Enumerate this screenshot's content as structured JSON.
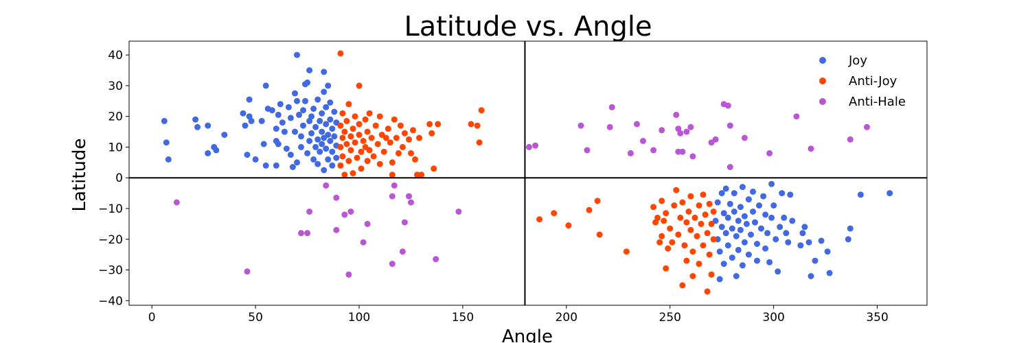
{
  "chart_data": {
    "type": "scatter",
    "title": "Latitude vs. Angle",
    "xlabel": "Angle",
    "ylabel": "Latitude",
    "xlim": [
      -11,
      374
    ],
    "ylim": [
      -41.5,
      44.5
    ],
    "xticks": [
      0,
      50,
      100,
      150,
      200,
      250,
      300,
      350
    ],
    "yticks": [
      -40,
      -30,
      -20,
      -10,
      0,
      10,
      20,
      30,
      40
    ],
    "ytick_labels": [
      "−40",
      "−30",
      "−20",
      "−10",
      "0",
      "10",
      "20",
      "30",
      "40"
    ],
    "reference_lines": {
      "vertical_x": 180,
      "horizontal_y": 0
    },
    "grid": false,
    "legend_position": "top-right",
    "series": [
      {
        "name": "Joy",
        "color": "#4169E1",
        "cluster_center": [
          82,
          14
        ],
        "cluster_center_2": [
          284,
          -16
        ],
        "points": [
          [
            6,
            18.5
          ],
          [
            7,
            11.5
          ],
          [
            8,
            6
          ],
          [
            21,
            19
          ],
          [
            22,
            16.5
          ],
          [
            27,
            17
          ],
          [
            27,
            8
          ],
          [
            30,
            10
          ],
          [
            31,
            9
          ],
          [
            35,
            14
          ],
          [
            44,
            21
          ],
          [
            45,
            17
          ],
          [
            46,
            7.5
          ],
          [
            47,
            25.5
          ],
          [
            47,
            20
          ],
          [
            48,
            18.5
          ],
          [
            50,
            6
          ],
          [
            53,
            18.5
          ],
          [
            54,
            11
          ],
          [
            55,
            4
          ],
          [
            55,
            30
          ],
          [
            56,
            22.5
          ],
          [
            58,
            22
          ],
          [
            60,
            12
          ],
          [
            60,
            16
          ],
          [
            60,
            4
          ],
          [
            61,
            20.5
          ],
          [
            61,
            11
          ],
          [
            62,
            24
          ],
          [
            63,
            18
          ],
          [
            64,
            15
          ],
          [
            65,
            9.5
          ],
          [
            66,
            23
          ],
          [
            67,
            19.5
          ],
          [
            67,
            7.5
          ],
          [
            68,
            3.5
          ],
          [
            69,
            27.5
          ],
          [
            69,
            15
          ],
          [
            70,
            40
          ],
          [
            70,
            25
          ],
          [
            70,
            5
          ],
          [
            71,
            20.5
          ],
          [
            72,
            13.5
          ],
          [
            72,
            10
          ],
          [
            73,
            17
          ],
          [
            73,
            22
          ],
          [
            74,
            25
          ],
          [
            74,
            30.5
          ],
          [
            75,
            31
          ],
          [
            75,
            8
          ],
          [
            76,
            12
          ],
          [
            76,
            18.5
          ],
          [
            76,
            35
          ],
          [
            77,
            14.5
          ],
          [
            77,
            20
          ],
          [
            78,
            6
          ],
          [
            78,
            22.5
          ],
          [
            79,
            10
          ],
          [
            79,
            16.5
          ],
          [
            80,
            12.5
          ],
          [
            80,
            25.5
          ],
          [
            80,
            4.5
          ],
          [
            81,
            18.5
          ],
          [
            81,
            8.5
          ],
          [
            82,
            15
          ],
          [
            82,
            21
          ],
          [
            82,
            11
          ],
          [
            83,
            13
          ],
          [
            83,
            28
          ],
          [
            83,
            34.5
          ],
          [
            83,
            2.5
          ],
          [
            84,
            17.5
          ],
          [
            84,
            9.5
          ],
          [
            84,
            23
          ],
          [
            85,
            14
          ],
          [
            85,
            6
          ],
          [
            85,
            30
          ],
          [
            86,
            19
          ],
          [
            86,
            12
          ],
          [
            86,
            24.5
          ],
          [
            87,
            16
          ],
          [
            87,
            8.5
          ],
          [
            87,
            4
          ],
          [
            88,
            13.5
          ],
          [
            88,
            21.5
          ],
          [
            89,
            10.5
          ],
          [
            89,
            18
          ],
          [
            89,
            6.5
          ],
          [
            272,
            -14
          ],
          [
            273,
            -20
          ],
          [
            273,
            -8
          ],
          [
            274,
            -33
          ],
          [
            274,
            -24
          ],
          [
            275,
            -16
          ],
          [
            275,
            -5
          ],
          [
            276,
            -11.5
          ],
          [
            276,
            -28
          ],
          [
            277,
            -18
          ],
          [
            277,
            -3.5
          ],
          [
            278,
            -13
          ],
          [
            278,
            -22
          ],
          [
            279,
            -8.5
          ],
          [
            280,
            -16.5
          ],
          [
            280,
            -26
          ],
          [
            281,
            -11
          ],
          [
            281,
            -5
          ],
          [
            282,
            -19
          ],
          [
            282,
            -32
          ],
          [
            283,
            -14
          ],
          [
            283,
            -23.5
          ],
          [
            284,
            -9.5
          ],
          [
            284,
            -17
          ],
          [
            285,
            -28.5
          ],
          [
            285,
            -3
          ],
          [
            286,
            -12.5
          ],
          [
            286,
            -21
          ],
          [
            287,
            -15
          ],
          [
            288,
            -7
          ],
          [
            288,
            -25
          ],
          [
            289,
            -18.5
          ],
          [
            290,
            -11
          ],
          [
            290,
            -4.5
          ],
          [
            291,
            -14.5
          ],
          [
            292,
            -21.5
          ],
          [
            292,
            -27
          ],
          [
            293,
            -9
          ],
          [
            294,
            -16.5
          ],
          [
            295,
            -6
          ],
          [
            296,
            -12
          ],
          [
            296,
            -23
          ],
          [
            297,
            -18
          ],
          [
            298,
            -27.5
          ],
          [
            299,
            -2
          ],
          [
            299,
            -13
          ],
          [
            300,
            -9
          ],
          [
            301,
            -20
          ],
          [
            302,
            -30.5
          ],
          [
            303,
            -16
          ],
          [
            304,
            -5
          ],
          [
            305,
            -13
          ],
          [
            306,
            -18
          ],
          [
            307,
            -21
          ],
          [
            308,
            -5.5
          ],
          [
            309,
            -14
          ],
          [
            313,
            -22
          ],
          [
            314,
            -18
          ],
          [
            315,
            -16
          ],
          [
            317,
            -21
          ],
          [
            318,
            -32
          ],
          [
            320,
            -27
          ],
          [
            323,
            -20.5
          ],
          [
            326,
            -24
          ],
          [
            327,
            -31
          ],
          [
            336,
            -20
          ],
          [
            337,
            -16.5
          ],
          [
            342,
            -5.5
          ],
          [
            356,
            -5
          ]
        ]
      },
      {
        "name": "Anti-Joy",
        "color": "#FF4500",
        "points": [
          [
            91,
            40.5
          ],
          [
            91,
            17
          ],
          [
            91,
            10
          ],
          [
            91,
            4
          ],
          [
            92,
            13
          ],
          [
            92,
            21
          ],
          [
            92,
            7
          ],
          [
            93,
            1
          ],
          [
            93,
            15
          ],
          [
            94,
            11
          ],
          [
            94,
            18.5
          ],
          [
            95,
            5.5
          ],
          [
            95,
            24
          ],
          [
            96,
            13.5
          ],
          [
            96,
            9
          ],
          [
            97,
            16
          ],
          [
            97,
            1.5
          ],
          [
            98,
            20
          ],
          [
            98,
            11.5
          ],
          [
            99,
            6.5
          ],
          [
            100,
            14
          ],
          [
            100,
            30
          ],
          [
            100,
            17.5
          ],
          [
            101,
            8.5
          ],
          [
            101,
            3
          ],
          [
            102,
            12
          ],
          [
            103,
            19
          ],
          [
            103,
            10
          ],
          [
            104,
            15
          ],
          [
            104,
            5.5
          ],
          [
            105,
            9
          ],
          [
            105,
            21
          ],
          [
            106,
            13
          ],
          [
            107,
            7
          ],
          [
            108,
            17
          ],
          [
            109,
            11
          ],
          [
            110,
            4.5
          ],
          [
            110,
            20
          ],
          [
            111,
            14
          ],
          [
            112,
            8.5
          ],
          [
            113,
            13
          ],
          [
            114,
            16
          ],
          [
            115,
            11.5
          ],
          [
            116,
            5
          ],
          [
            116,
            1
          ],
          [
            117,
            19
          ],
          [
            118,
            13
          ],
          [
            119,
            8
          ],
          [
            120,
            17
          ],
          [
            121,
            10
          ],
          [
            122,
            14.5
          ],
          [
            124,
            12.5
          ],
          [
            125,
            8
          ],
          [
            126,
            15.5
          ],
          [
            127,
            6
          ],
          [
            128,
            1
          ],
          [
            129,
            13
          ],
          [
            130,
            1
          ],
          [
            134,
            17.5
          ],
          [
            135,
            14.5
          ],
          [
            136,
            3
          ],
          [
            138,
            17.5
          ],
          [
            154,
            17.5
          ],
          [
            157,
            17
          ],
          [
            158,
            11.5
          ],
          [
            159,
            22
          ],
          [
            187,
            -13.5
          ],
          [
            194,
            -11.5
          ],
          [
            201,
            -15.5
          ],
          [
            211,
            -10.5
          ],
          [
            215,
            -7.5
          ],
          [
            216,
            -18.5
          ],
          [
            229,
            -24
          ],
          [
            242,
            -9.5
          ],
          [
            243,
            -14.5
          ],
          [
            244,
            -13
          ],
          [
            245,
            -21
          ],
          [
            246,
            -19
          ],
          [
            246,
            -7.5
          ],
          [
            247,
            -14
          ],
          [
            248,
            -11.5
          ],
          [
            248,
            -29.5
          ],
          [
            249,
            -23
          ],
          [
            250,
            -16.5
          ],
          [
            251,
            -21
          ],
          [
            252,
            -9
          ],
          [
            253,
            -4
          ],
          [
            254,
            -18.5
          ],
          [
            255,
            -13
          ],
          [
            256,
            -8
          ],
          [
            256,
            -35
          ],
          [
            257,
            -22
          ],
          [
            258,
            -14.5
          ],
          [
            258,
            -27
          ],
          [
            259,
            -11
          ],
          [
            260,
            -17
          ],
          [
            260,
            -6
          ],
          [
            261,
            -24
          ],
          [
            261,
            -32
          ],
          [
            262,
            -13
          ],
          [
            263,
            -19
          ],
          [
            264,
            -9
          ],
          [
            264,
            -28
          ],
          [
            265,
            -15
          ],
          [
            266,
            -22
          ],
          [
            266,
            -5.5
          ],
          [
            267,
            -12
          ],
          [
            268,
            -37
          ],
          [
            268,
            -18
          ],
          [
            269,
            -25
          ],
          [
            269,
            -8.5
          ],
          [
            270,
            -15
          ],
          [
            270,
            -31.5
          ],
          [
            271,
            -11
          ],
          [
            271,
            -20
          ]
        ]
      },
      {
        "name": "Anti-Hale",
        "color": "#BA55D3",
        "points": [
          [
            12,
            -8
          ],
          [
            46,
            -30.5
          ],
          [
            72,
            -18
          ],
          [
            75,
            -18
          ],
          [
            76,
            -11
          ],
          [
            84,
            -2.5
          ],
          [
            89,
            -6.5
          ],
          [
            89,
            -17
          ],
          [
            93,
            -12
          ],
          [
            95,
            -31.5
          ],
          [
            96,
            -11
          ],
          [
            102,
            -21
          ],
          [
            104,
            -15
          ],
          [
            116,
            -6
          ],
          [
            116,
            -28
          ],
          [
            117,
            -2.5
          ],
          [
            121,
            -24
          ],
          [
            122,
            -14.5
          ],
          [
            124,
            -6
          ],
          [
            125,
            -8
          ],
          [
            137,
            -26.5
          ],
          [
            148,
            -11
          ],
          [
            182,
            10
          ],
          [
            185,
            10.5
          ],
          [
            207,
            17
          ],
          [
            210,
            9
          ],
          [
            221,
            16.5
          ],
          [
            222,
            23
          ],
          [
            231,
            8
          ],
          [
            234,
            17.5
          ],
          [
            237,
            12
          ],
          [
            242,
            9
          ],
          [
            246,
            15.5
          ],
          [
            253,
            20.5
          ],
          [
            254,
            16
          ],
          [
            254,
            8.5
          ],
          [
            255,
            14.5
          ],
          [
            256,
            8.5
          ],
          [
            258,
            15
          ],
          [
            260,
            16.5
          ],
          [
            261,
            7
          ],
          [
            270,
            11.5
          ],
          [
            272,
            12.5
          ],
          [
            276,
            24
          ],
          [
            278,
            23.5
          ],
          [
            279,
            17
          ],
          [
            279,
            3.5
          ],
          [
            286,
            13
          ],
          [
            298,
            8
          ],
          [
            311,
            20
          ],
          [
            318,
            9.5
          ],
          [
            337,
            12.5
          ],
          [
            345,
            16.5
          ]
        ]
      }
    ]
  }
}
